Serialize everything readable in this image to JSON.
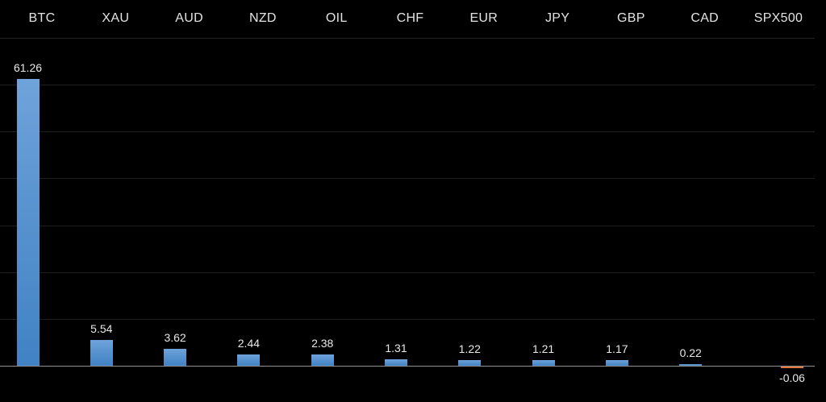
{
  "chart_data": {
    "type": "bar",
    "title": "",
    "xlabel": "",
    "ylabel": "",
    "categories": [
      "BTC",
      "XAU",
      "AUD",
      "NZD",
      "OIL",
      "CHF",
      "EUR",
      "JPY",
      "GBP",
      "CAD",
      "SPX500"
    ],
    "values": [
      61.26,
      5.54,
      3.62,
      2.44,
      2.38,
      1.31,
      1.22,
      1.21,
      1.17,
      0.22,
      -0.06
    ],
    "value_labels": [
      "61.26",
      "5.54",
      "3.62",
      "2.44",
      "2.38",
      "1.31",
      "1.22",
      "1.21",
      "1.17",
      "0.22",
      "-0.06"
    ],
    "ylim": [
      0,
      70
    ],
    "gridline_step": 10,
    "grid": true,
    "legend": "none",
    "y_tick_labels_visible": false,
    "colors": {
      "background": "#000000",
      "bar_positive_top": "#6FA3DA",
      "bar_positive_bottom": "#4182C4",
      "bar_negative": "#E2793A",
      "category_text": "#E3E3E3",
      "value_text": "#E8E8E8",
      "gridline": "#1F1F1F",
      "axis_line": "#909090"
    }
  }
}
